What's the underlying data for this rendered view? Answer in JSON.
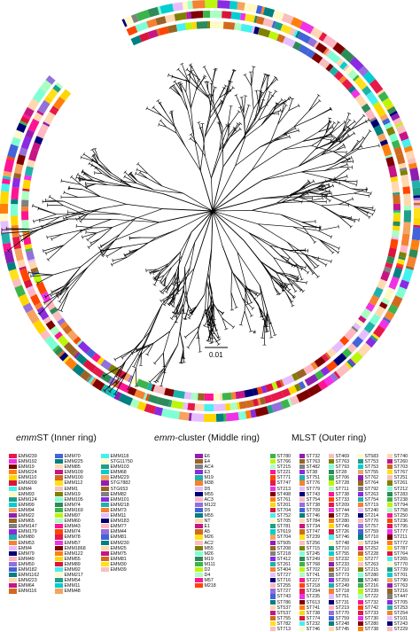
{
  "figure": {
    "scale_bar_label": "0.01",
    "asterisk": "*",
    "ring_palette": [
      "#e6194b",
      "#3cb44b",
      "#ffe119",
      "#4363d8",
      "#f58231",
      "#911eb4",
      "#46f0f0",
      "#f032e6",
      "#bcf60c",
      "#fabebe",
      "#008080",
      "#e6beff",
      "#9a6324",
      "#fffac8",
      "#800000",
      "#aaffc3",
      "#808000",
      "#ffd8b1",
      "#000075",
      "#808080",
      "#1f9e89",
      "#ff7f0e",
      "#ff1493",
      "#7fffd4",
      "#c71585",
      "#ffb6c1",
      "#8a2be2",
      "#00ced1",
      "#ffd700",
      "#ff4500",
      "#2e8b57",
      "#d2691e",
      "#9370db",
      "#20b2aa",
      "#f4a460",
      "#dc143c"
    ]
  },
  "legends": {
    "emmst": {
      "title_italic": "emm",
      "title_rest": "ST (Inner ring)",
      "columns": [
        [
          "EMM239",
          "EMM192",
          "EMM19",
          "EMM224",
          "EMM110",
          "EMM209",
          "EMM4",
          "EMM93",
          "EMM124",
          "EMM99",
          "EMM94",
          "EMM22",
          "EMM65",
          "EMM147",
          "EMM179",
          "EMM80",
          "EMM53",
          "EMM4",
          "EMM79",
          "EMM49",
          "EMM50",
          "EMM182",
          "EMM1162",
          "EMM223",
          "EMM64",
          "EMM116"
        ],
        [
          "EMM70",
          "EMM225",
          "EMM85",
          "EMM109",
          "EMM100",
          "EMM112",
          "EMM1",
          "EMM19",
          "EMM105",
          "EMM74",
          "EMM169",
          "EMM97",
          "EMM60",
          "EMM43",
          "EMM74",
          "EMM78",
          "EMM57",
          "EMM1868",
          "EMM122",
          "EMM55",
          "EMM89",
          "EMM92",
          "EMM217",
          "EMM54",
          "EMM11",
          "EMM48"
        ],
        [
          "EMM118",
          "STG11750",
          "EMM103",
          "EMM68",
          "EMM229",
          "STG7882",
          "STG653",
          "EMM82",
          "EMM101",
          "EMM218",
          "EMM73",
          "EMM11",
          "EMM183",
          "EMM77",
          "EMM44",
          "EMM81",
          "EMM230",
          "EMM25",
          "EMM75",
          "EMM81",
          "EMM30",
          "EMM39"
        ]
      ]
    },
    "cluster": {
      "title_italic": "emm",
      "title_rest": "-cluster (Middle ring)",
      "items": [
        "E6",
        "E4",
        "AC4",
        "E3",
        "M19",
        "M38",
        "D5",
        "M55",
        "AC3",
        "M122",
        "D5",
        "M55",
        "NT",
        "E1",
        "A5",
        "M26",
        "AC2",
        "M55",
        "M26",
        "M19",
        "M111",
        "D2",
        "D4",
        "M57",
        "M218"
      ]
    },
    "mlst": {
      "title": "MLST (Outer ring)",
      "columns": [
        [
          "ST780",
          "ST766",
          "ST215",
          "ST221",
          "ST771",
          "ST747",
          "ST213",
          "ST498",
          "ST761",
          "ST201",
          "ST704",
          "ST752",
          "ST705",
          "ST781",
          "ST619",
          "ST704",
          "ST505",
          "ST208",
          "ST218",
          "ST412",
          "ST261",
          "ST404",
          "ST727",
          "ST716",
          "ST255",
          "ST727",
          "ST743",
          "ST786",
          "ST537",
          "ST537",
          "ST755",
          "ST782",
          "ST713"
        ],
        [
          "ST732",
          "ST763",
          "ST482",
          "ST38",
          "ST751",
          "ST776",
          "ST779",
          "ST743",
          "ST754",
          "ST738",
          "ST709",
          "ST746",
          "ST784",
          "ST734",
          "ST747",
          "ST239",
          "ST256",
          "ST715",
          "ST245",
          "ST249",
          "ST768",
          "ST702",
          "ST741",
          "ST227",
          "ST218",
          "ST294",
          "ST235",
          "ST613",
          "ST741",
          "ST738",
          "ST774",
          "ST232",
          "ST746"
        ],
        [
          "ST469",
          "ST763",
          "ST793",
          "ST28",
          "ST706",
          "ST728",
          "ST711",
          "ST738",
          "ST733",
          "ST209",
          "ST744",
          "ST735",
          "ST280",
          "ST749",
          "ST726",
          "ST746",
          "ST748",
          "ST710",
          "ST755",
          "ST232",
          "ST233",
          "ST710",
          "ST773",
          "ST259",
          "ST249",
          "ST718",
          "ST751",
          "ST731",
          "ST219",
          "ST770",
          "ST759",
          "ST248",
          "ST745"
        ],
        [
          "ST583",
          "ST753",
          "ST753",
          "ST755",
          "ST762",
          "ST764",
          "ST792",
          "ST263",
          "ST754",
          "ST719",
          "ST240",
          "ST214",
          "ST770",
          "ST757",
          "ST759",
          "ST710",
          "ST234",
          "ST252",
          "ST228",
          "ST277",
          "ST263",
          "ST215",
          "ST280",
          "ST240",
          "ST216",
          "ST239",
          "ST722",
          "ST732",
          "ST742",
          "ST733",
          "ST730",
          "ST280",
          "ST738"
        ],
        [
          "ST740",
          "ST260",
          "ST703",
          "ST767",
          "ST251",
          "ST261",
          "ST212",
          "ST283",
          "ST238",
          "ST794",
          "ST758",
          "ST250",
          "ST236",
          "ST795",
          "ST777",
          "ST211",
          "ST772",
          "ST787",
          "ST764",
          "ST265",
          "ST770",
          "ST739",
          "ST701",
          "ST790",
          "ST763",
          "ST216",
          "ST447",
          "ST705",
          "ST253",
          "ST254",
          "ST101",
          "ST243",
          "ST229"
        ]
      ]
    }
  }
}
